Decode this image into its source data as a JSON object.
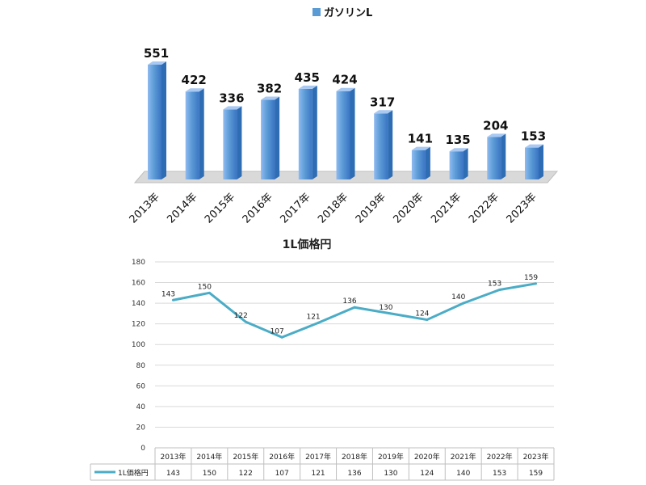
{
  "chart_data": [
    {
      "type": "bar",
      "legend": {
        "label": "ガソリンL",
        "position": "top"
      },
      "categories": [
        "2013年",
        "2014年",
        "2015年",
        "2016年",
        "2017年",
        "2018年",
        "2019年",
        "2020年",
        "2021年",
        "2022年",
        "2023年"
      ],
      "series": [
        {
          "name": "ガソリンL",
          "values": [
            551,
            422,
            336,
            382,
            435,
            424,
            317,
            141,
            135,
            204,
            153
          ]
        }
      ],
      "ylim": [
        0,
        600
      ],
      "colors": {
        "bar": "#5b9bd5",
        "bar_dark": "#2e6db4",
        "floor": "#d9d9d9"
      }
    },
    {
      "type": "line",
      "title": "1L価格円",
      "categories": [
        "2013年",
        "2014年",
        "2015年",
        "2016年",
        "2017年",
        "2018年",
        "2019年",
        "2020年",
        "2021年",
        "2022年",
        "2023年"
      ],
      "series": [
        {
          "name": "1L価格円",
          "values": [
            143,
            150,
            122,
            107,
            121,
            136,
            130,
            124,
            140,
            153,
            159
          ]
        }
      ],
      "ylim": [
        0,
        180
      ],
      "yticks": [
        0,
        20,
        40,
        60,
        80,
        100,
        120,
        140,
        160,
        180
      ],
      "grid": true,
      "data_table": true,
      "colors": {
        "line": "#4bacc6",
        "grid": "#d9d9d9"
      }
    }
  ]
}
